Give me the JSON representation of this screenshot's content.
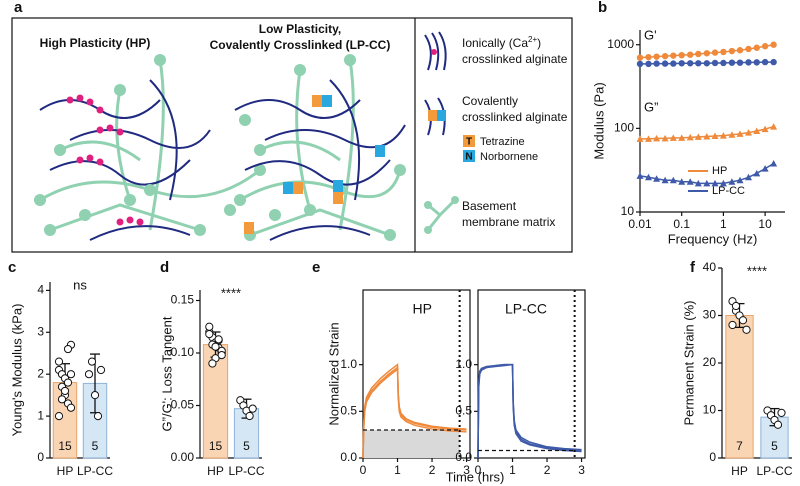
{
  "panel_labels": [
    "a",
    "b",
    "c",
    "d",
    "e",
    "f"
  ],
  "schematic": {
    "hp_title": "High Plasticity (HP)",
    "lpcc_title": [
      "Low Plasticity,",
      "Covalently Crosslinked (LP-CC)"
    ],
    "ionic": [
      [
        "Ionically (Ca",
        "2+",
        ")"
      ],
      "crosslinked alginate"
    ],
    "covalent": [
      "Covalently",
      "crosslinked alginate"
    ],
    "tetrazine_symbol": "T",
    "tetrazine": "Tetrazine",
    "norbornene_symbol": "N",
    "norbornene": "Norbornene",
    "matrix": [
      "Basement",
      "membrane matrix"
    ]
  },
  "chart_data": [
    {
      "type": "line",
      "xlabel": "Frequency (Hz)",
      "ylabel": "Modulus (Pa)",
      "log_x": true,
      "log_y": true,
      "x": [
        0.01,
        0.016,
        0.025,
        0.04,
        0.063,
        0.1,
        0.16,
        0.25,
        0.4,
        0.63,
        1,
        1.6,
        2.5,
        4,
        6.3,
        10,
        16
      ],
      "series": [
        {
          "name": "HP",
          "color": "#ef8a3c",
          "storage": [
            700,
            710,
            720,
            730,
            740,
            750,
            760,
            775,
            790,
            805,
            820,
            840,
            860,
            890,
            920,
            960,
            1000
          ],
          "loss": [
            75,
            75,
            76,
            76,
            77,
            77,
            78,
            79,
            80,
            81,
            82,
            84,
            86,
            89,
            93,
            98,
            105
          ]
        },
        {
          "name": "LP-CC",
          "color": "#3e5aa8",
          "storage": [
            590,
            590,
            595,
            595,
            595,
            600,
            600,
            600,
            600,
            605,
            605,
            610,
            610,
            615,
            615,
            620,
            620
          ],
          "loss": [
            27,
            26,
            25,
            24,
            24,
            23,
            23,
            22,
            22,
            22,
            22,
            23,
            24,
            26,
            29,
            33,
            38
          ]
        }
      ],
      "annotations": [
        "G'",
        "G”"
      ],
      "xlim": [
        0.01,
        30
      ],
      "xticks": [
        0.01,
        0.1,
        1,
        10
      ],
      "ylim": [
        10,
        1500
      ],
      "yticks": [
        10,
        100,
        1000
      ],
      "legend": "center-right"
    },
    {
      "type": "bar_points",
      "ylabel": "Young's Modulus (kPa)",
      "categories": [
        "HP",
        "LP-CC"
      ],
      "values": [
        1.8,
        1.78
      ],
      "errors": [
        0.45,
        0.7
      ],
      "points": [
        [
          2.1,
          2.0,
          1.9,
          1.8,
          2.7,
          2.3,
          1.7,
          1.5,
          1.3,
          1.2,
          1.0,
          1.4,
          1.6,
          2.6,
          2.0
        ],
        [
          2.0,
          2.3,
          1.5,
          1.0,
          2.1
        ]
      ],
      "n": [
        15,
        5
      ],
      "colors": [
        "#fad5b3",
        "#d5e6f5"
      ],
      "edge_colors": [
        "#e9a46a",
        "#8fb3d9"
      ],
      "significance": "ns",
      "ylim": [
        0,
        4.2
      ],
      "yticks": [
        0,
        1,
        2,
        3,
        4
      ]
    },
    {
      "type": "bar_points",
      "ylabel": "G”/G': Loss Tangent",
      "categories": [
        "HP",
        "LP-CC"
      ],
      "values": [
        0.108,
        0.047
      ],
      "errors": [
        0.012,
        0.009
      ],
      "points": [
        [
          0.12,
          0.115,
          0.11,
          0.105,
          0.1,
          0.125,
          0.108,
          0.095,
          0.112,
          0.102,
          0.118,
          0.09,
          0.106,
          0.113,
          0.098
        ],
        [
          0.055,
          0.05,
          0.045,
          0.04,
          0.047
        ]
      ],
      "n": [
        15,
        5
      ],
      "colors": [
        "#fad5b3",
        "#d5e6f5"
      ],
      "edge_colors": [
        "#e9a46a",
        "#8fb3d9"
      ],
      "significance": "****",
      "ylim": [
        0,
        0.16
      ],
      "yticks": [
        {
          "value": 0,
          "label": "0.00"
        },
        {
          "value": 0.05,
          "label": "0.05"
        },
        {
          "value": 0.1,
          "label": "0.10"
        },
        {
          "value": 0.15,
          "label": "0.15"
        }
      ]
    },
    {
      "type": "strain",
      "title": "HP",
      "xlabel": "Time (hrs)",
      "ylabel": "Normalized Strain",
      "color": "#ef8a3c",
      "x": [
        0,
        0.02,
        0.05,
        0.1,
        0.25,
        0.5,
        0.75,
        1,
        1.02,
        1.05,
        1.1,
        1.25,
        1.5,
        2,
        2.5,
        3
      ],
      "series": [
        {
          "values": [
            0,
            0.35,
            0.55,
            0.65,
            0.75,
            0.85,
            0.93,
            1,
            0.7,
            0.55,
            0.48,
            0.42,
            0.38,
            0.34,
            0.32,
            0.31
          ]
        },
        {
          "values": [
            0,
            0.3,
            0.5,
            0.6,
            0.7,
            0.8,
            0.88,
            0.95,
            0.65,
            0.5,
            0.44,
            0.39,
            0.35,
            0.31,
            0.29,
            0.28
          ]
        },
        {
          "values": [
            0,
            0.32,
            0.52,
            0.62,
            0.72,
            0.82,
            0.9,
            0.97,
            0.68,
            0.53,
            0.46,
            0.41,
            0.37,
            0.33,
            0.31,
            0.3
          ]
        }
      ],
      "residual": 0.3,
      "end_time": 2.8,
      "shade": true,
      "xlim": [
        0,
        3.1
      ],
      "xticks": [
        0,
        1,
        2,
        3
      ],
      "ylim": [
        0,
        1.8
      ],
      "yticks": [
        {
          "value": 0,
          "label": "0.0"
        },
        {
          "value": 0.5,
          "label": "0.5"
        },
        {
          "value": 1,
          "label": "1.0"
        }
      ]
    },
    {
      "type": "strain",
      "title": "LP-CC",
      "color": "#3e5aa8",
      "x": [
        0,
        0.02,
        0.05,
        0.1,
        0.25,
        0.5,
        0.75,
        1,
        1.02,
        1.05,
        1.1,
        1.25,
        1.5,
        2,
        2.5,
        3
      ],
      "series": [
        {
          "values": [
            0,
            0.8,
            0.93,
            0.96,
            0.98,
            0.99,
            1,
            1,
            0.6,
            0.4,
            0.3,
            0.22,
            0.17,
            0.12,
            0.1,
            0.09
          ]
        },
        {
          "values": [
            0,
            0.75,
            0.9,
            0.94,
            0.97,
            0.98,
            0.99,
            1,
            0.55,
            0.35,
            0.26,
            0.18,
            0.14,
            0.1,
            0.08,
            0.07
          ]
        },
        {
          "values": [
            0,
            0.78,
            0.92,
            0.95,
            0.97,
            0.99,
            1,
            1,
            0.58,
            0.38,
            0.28,
            0.2,
            0.15,
            0.11,
            0.09,
            0.08
          ]
        }
      ],
      "residual": 0.08,
      "end_time": 2.8,
      "shade": false,
      "xlim": [
        0,
        3.1
      ],
      "xticks": [
        0,
        1,
        2,
        3
      ],
      "ylim": [
        0,
        1.8
      ],
      "yticks": [
        {
          "value": 0,
          "label": "0.0"
        },
        {
          "value": 0.5,
          "label": "0.5"
        },
        {
          "value": 1,
          "label": "1.0"
        }
      ]
    },
    {
      "type": "bar_points",
      "ylabel": "Permanent Strain (%)",
      "categories": [
        "HP",
        "LP-CC"
      ],
      "values": [
        30,
        8.6
      ],
      "errors": [
        2.5,
        1.8
      ],
      "points": [
        [
          33,
          31,
          30,
          29,
          27,
          28,
          32
        ],
        [
          10,
          9,
          8,
          7,
          9.5
        ]
      ],
      "n": [
        7,
        5
      ],
      "colors": [
        "#fad5b3",
        "#d5e6f5"
      ],
      "edge_colors": [
        "#e9a46a",
        "#8fb3d9"
      ],
      "significance": "****",
      "ylim": [
        0,
        40
      ],
      "yticks": [
        0,
        10,
        20,
        30,
        40
      ]
    }
  ]
}
